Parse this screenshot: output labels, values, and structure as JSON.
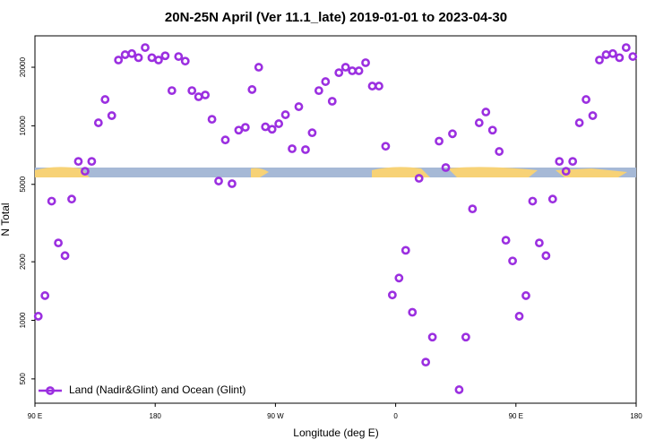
{
  "chart_data": {
    "type": "scatter",
    "title": "20N-25N April (Ver 11.1_late)   2019-01-01 to 2023-04-30",
    "xlabel": "Longitude (deg E)",
    "ylabel": "N Total",
    "log_y": true,
    "legend_position": "lower left",
    "xlim": [
      90,
      540
    ],
    "xticks": [
      {
        "value": 90,
        "label": "90 E"
      },
      {
        "value": 180,
        "label": "180"
      },
      {
        "value": 270,
        "label": "90 W"
      },
      {
        "value": 360,
        "label": "0"
      },
      {
        "value": 450,
        "label": "90 E"
      },
      {
        "value": 540,
        "label": "180"
      }
    ],
    "ylim": [
      375,
      29000
    ],
    "yticks": [
      500,
      1000,
      2000,
      5000,
      10000,
      20000
    ],
    "series": [
      {
        "name": "Land (Nadir&Glint) and Ocean (Glint)",
        "color": "#9b2fe0",
        "x": [
          92.5,
          97.5,
          102.5,
          107.5,
          112.5,
          117.5,
          122.5,
          127.5,
          132.5,
          137.5,
          142.5,
          147.5,
          152.5,
          157.5,
          162.5,
          167.5,
          172.5,
          177.5,
          182.5,
          187.5,
          192.5,
          197.5,
          202.5,
          207.5,
          212.5,
          217.5,
          222.5,
          227.5,
          232.5,
          237.5,
          242.5,
          247.5,
          252.5,
          257.5,
          262.5,
          267.5,
          272.5,
          277.5,
          282.5,
          287.5,
          292.5,
          297.5,
          302.5,
          307.5,
          312.5,
          317.5,
          322.5,
          327.5,
          332.5,
          337.5,
          342.5,
          347.5,
          352.5,
          357.5,
          362.5,
          367.5,
          372.5,
          377.5,
          382.5,
          387.5,
          392.5,
          397.5,
          402.5,
          407.5,
          412.5,
          417.5,
          422.5,
          427.5,
          432.5,
          437.5,
          442.5,
          447.5,
          452.5,
          457.5,
          462.5,
          467.5,
          472.5,
          477.5,
          482.5,
          487.5,
          492.5,
          497.5,
          502.5,
          507.5,
          512.5,
          517.5,
          522.5,
          527.5,
          532.5,
          537.5
        ],
        "values": [
          1050,
          1340,
          4100,
          2500,
          2150,
          4200,
          6560,
          5840,
          6560,
          10360,
          13650,
          11280,
          21780,
          23200,
          23500,
          22400,
          25240,
          22400,
          21780,
          22900,
          15170,
          22700,
          21500,
          15170,
          14100,
          14400,
          10800,
          5200,
          8460,
          5040,
          9500,
          9820,
          15360,
          20000,
          9880,
          9600,
          10250,
          11400,
          7620,
          12540,
          7540,
          9210,
          15170,
          16870,
          13370,
          18750,
          20000,
          19170,
          19170,
          21100,
          16000,
          16000,
          7850,
          1350,
          1650,
          2290,
          1100,
          5370,
          610,
          820,
          8340,
          6100,
          9100,
          440,
          820,
          3740,
          10360,
          11770,
          9500,
          7380,
          2580,
          2020,
          1050,
          1340,
          4100,
          2500,
          2150,
          4200,
          6560,
          5840,
          6560,
          10360,
          13650,
          11280,
          21780,
          23200,
          23500,
          22400,
          25240,
          22700
        ]
      }
    ]
  }
}
